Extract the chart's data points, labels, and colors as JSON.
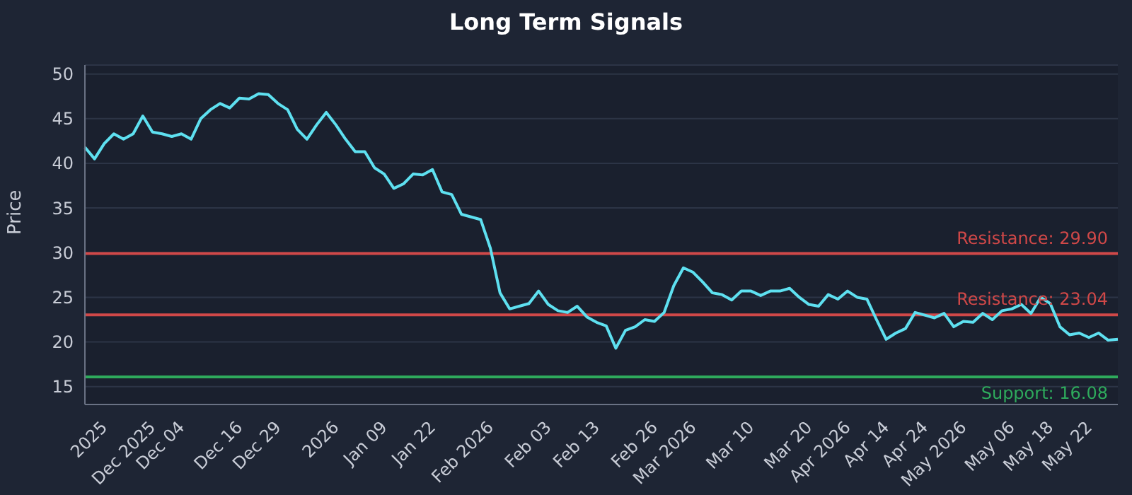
{
  "chart_data": {
    "type": "line",
    "title": "Long Term Signals",
    "ylabel": "Price",
    "categories": [
      null,
      null,
      "2025",
      null,
      null,
      null,
      null,
      "Dec 2025",
      null,
      null,
      "Dec 04",
      null,
      null,
      null,
      null,
      null,
      "Dec 16",
      null,
      null,
      null,
      "Dec 29",
      null,
      null,
      null,
      null,
      null,
      "2026",
      null,
      null,
      null,
      null,
      "Jan 09",
      null,
      null,
      null,
      null,
      "Jan 22",
      null,
      null,
      null,
      null,
      null,
      "Feb 2026",
      null,
      null,
      null,
      null,
      null,
      "Feb 03",
      null,
      null,
      null,
      null,
      "Feb 13",
      null,
      null,
      null,
      null,
      null,
      "Feb 26",
      null,
      null,
      null,
      "Mar 2026",
      null,
      null,
      null,
      null,
      null,
      "Mar 10",
      null,
      null,
      null,
      null,
      null,
      "Mar 20",
      null,
      null,
      null,
      "Apr 2026",
      null,
      null,
      null,
      "Apr 14",
      null,
      null,
      null,
      "Apr 24",
      null,
      null,
      null,
      "May 2026",
      null,
      null,
      null,
      null,
      "May 06",
      null,
      null,
      null,
      "May 18",
      null,
      null,
      null,
      "May 22",
      null,
      null,
      null
    ],
    "series": [
      {
        "color": "#5ee0f0",
        "values": [
          41.8,
          40.5,
          42.2,
          43.3,
          42.7,
          43.3,
          45.3,
          43.5,
          43.3,
          43,
          43.3,
          42.7,
          45,
          46,
          46.7,
          46.2,
          47.3,
          47.2,
          47.8,
          47.7,
          46.7,
          46,
          43.8,
          42.7,
          44.3,
          45.7,
          44.3,
          42.7,
          41.3,
          41.3,
          39.5,
          38.8,
          37.2,
          37.7,
          38.8,
          38.7,
          39.3,
          36.8,
          36.5,
          34.3,
          34,
          33.7,
          30.5,
          25.5,
          23.7,
          24,
          24.3,
          25.7,
          24.2,
          23.5,
          23.3,
          24,
          22.8,
          22.2,
          21.8,
          19.3,
          21.3,
          21.7,
          22.5,
          22.3,
          23.3,
          26.3,
          28.3,
          27.8,
          26.7,
          25.5,
          25.3,
          24.7,
          25.7,
          25.7,
          25.2,
          25.7,
          25.7,
          26,
          25,
          24.2,
          24,
          25.3,
          24.8,
          25.7,
          25,
          24.8,
          22.5,
          20.3,
          21,
          21.5,
          23.3,
          23,
          22.7,
          23.2,
          21.7,
          22.3,
          22.2,
          23.2,
          22.5,
          23.5,
          23.7,
          24.2,
          23.2,
          25,
          24.3,
          21.7,
          20.8,
          21,
          20.5,
          21,
          20.2,
          20.3
        ]
      }
    ],
    "ylim": [
      13,
      51
    ],
    "yticks": [
      15,
      20,
      25,
      30,
      35,
      40,
      45,
      50
    ],
    "grid": "y",
    "legend": false,
    "marker": "none",
    "line_style": "solid",
    "ref_lines": [
      {
        "axis": "y",
        "value": 29.9,
        "label": "Resistance: 29.90",
        "color": "#d04848"
      },
      {
        "axis": "y",
        "value": 23.04,
        "label": "Resistance: 23.04",
        "color": "#d04848"
      },
      {
        "axis": "y",
        "value": 16.08,
        "label": "Support: 16.08",
        "color": "#2eaa5c"
      }
    ]
  }
}
